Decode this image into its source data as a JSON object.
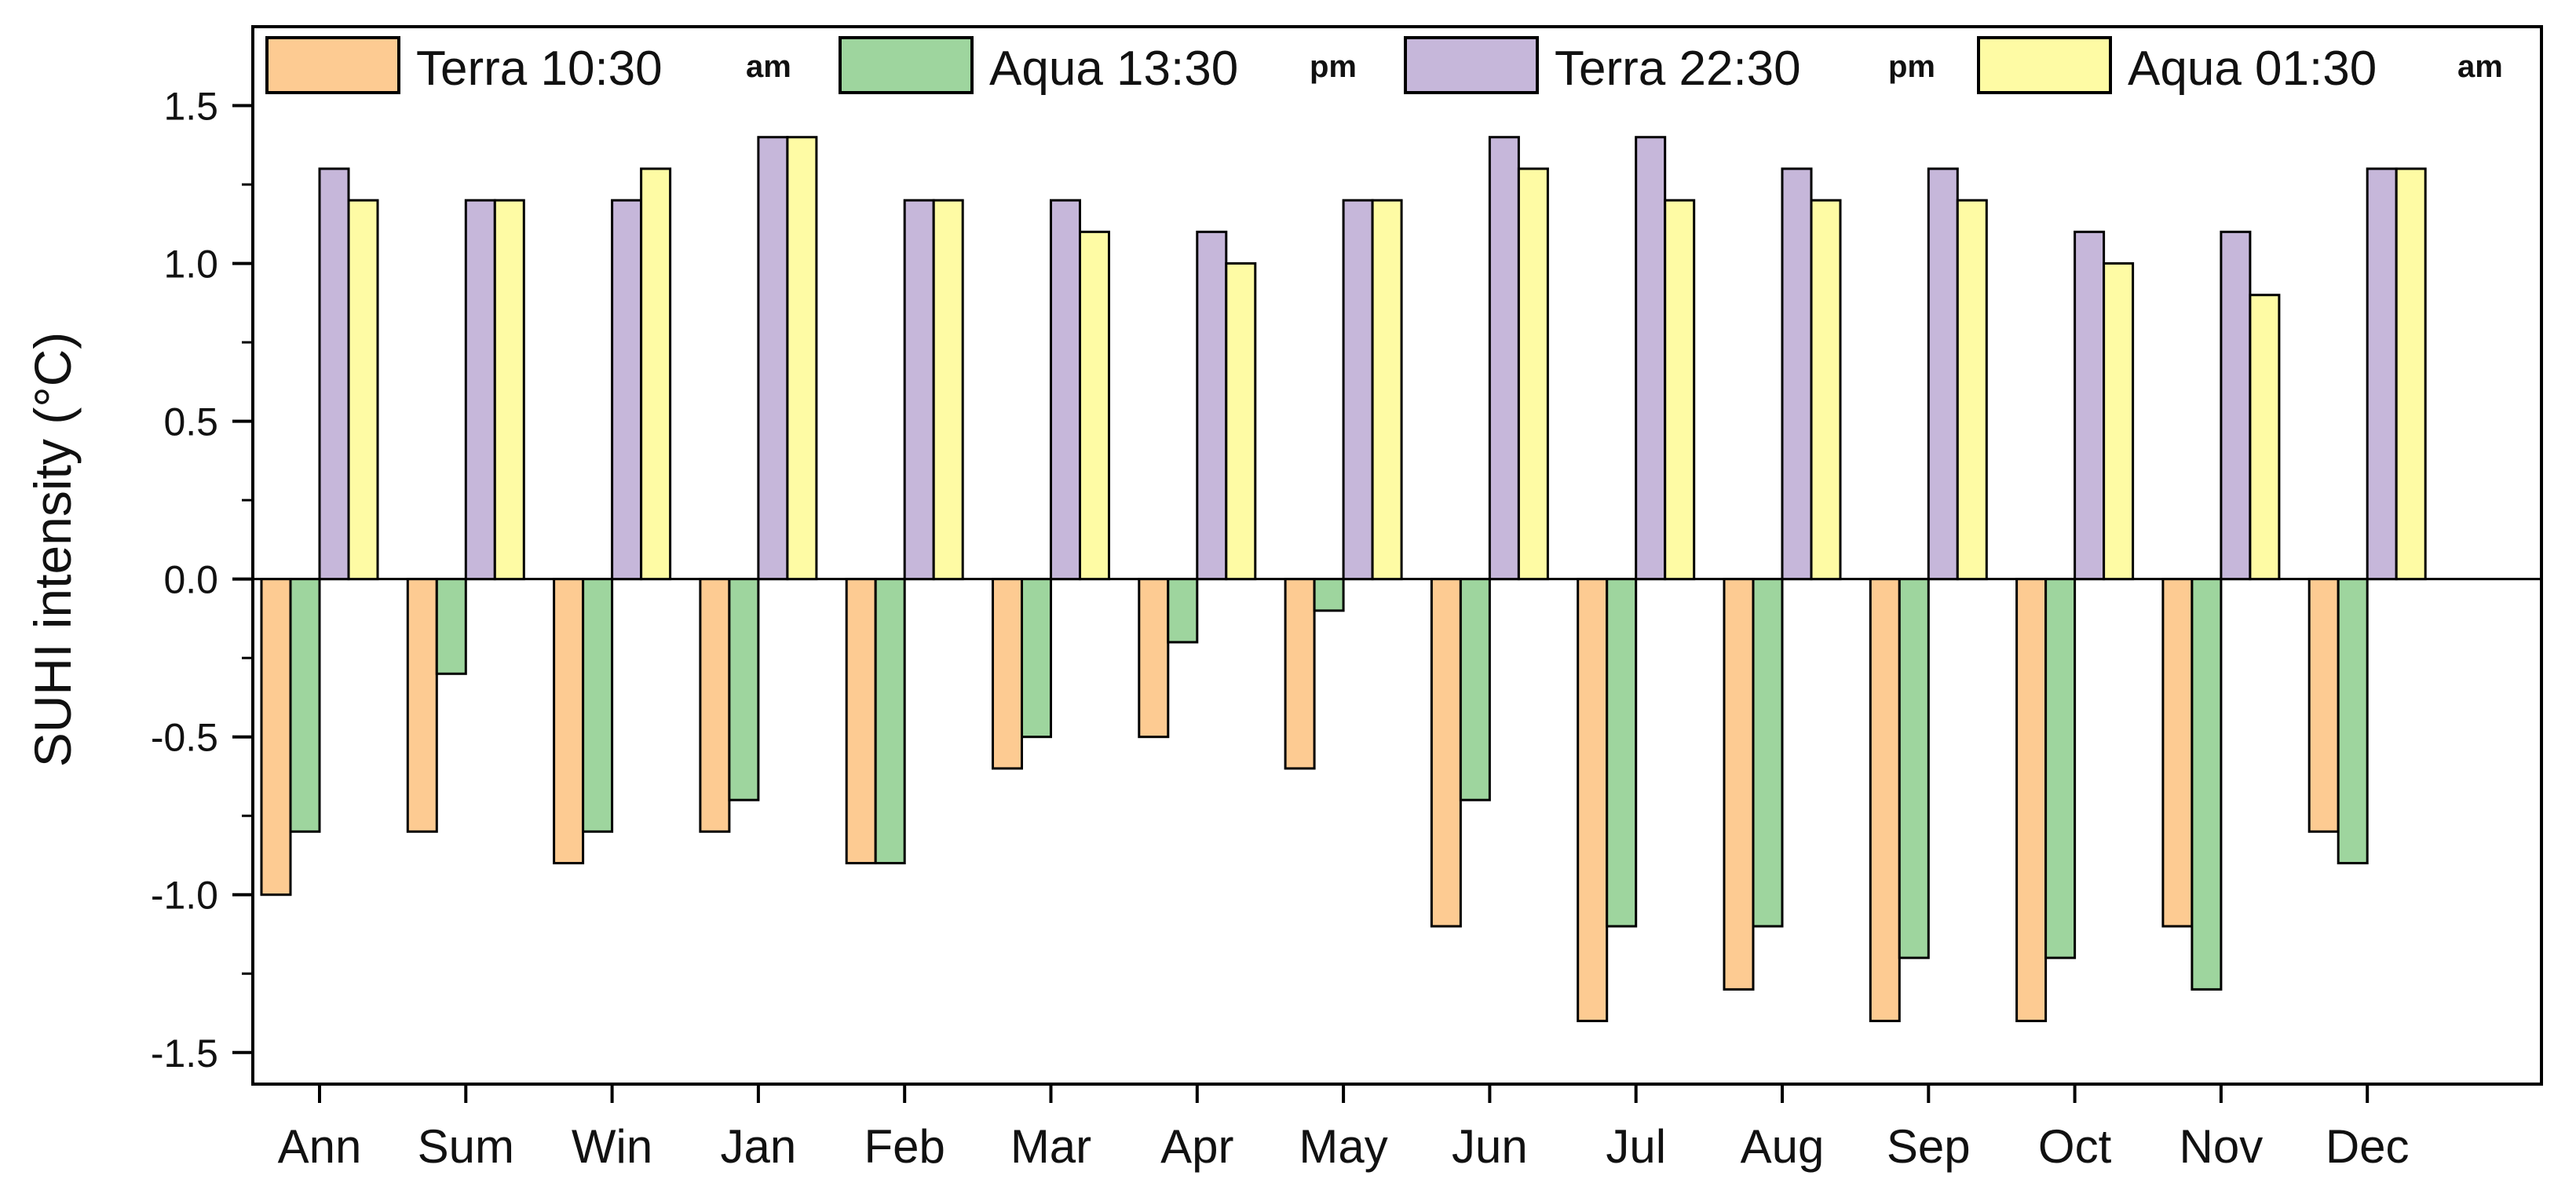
{
  "chart_data": {
    "type": "bar",
    "title": "",
    "xlabel": "",
    "ylabel": "SUHI intensity (°C)",
    "ylim": [
      -1.6,
      1.75
    ],
    "yticks": [
      "-1.5",
      "-1.0",
      "-0.5",
      "0.0",
      "0.5",
      "1.0",
      "1.5"
    ],
    "grid": false,
    "legend_position": "top",
    "categories": [
      "Ann",
      "Sum",
      "Win",
      "Jan",
      "Feb",
      "Mar",
      "Apr",
      "May",
      "Jun",
      "Jul",
      "Aug",
      "Sep",
      "Oct",
      "Nov",
      "Dec"
    ],
    "series": [
      {
        "name": "Terra 10:30",
        "suffix": "am",
        "color": "#FDCB92",
        "values": [
          -1.0,
          -0.8,
          -0.9,
          -0.8,
          -0.9,
          -0.6,
          -0.5,
          -0.6,
          -1.1,
          -1.4,
          -1.3,
          -1.4,
          -1.4,
          -1.1,
          -0.8
        ]
      },
      {
        "name": "Aqua 13:30",
        "suffix": "pm",
        "color": "#9ED59E",
        "values": [
          -0.8,
          -0.3,
          -0.8,
          -0.7,
          -0.9,
          -0.5,
          -0.2,
          -0.1,
          -0.7,
          -1.1,
          -1.1,
          -1.2,
          -1.2,
          -1.3,
          -0.9
        ]
      },
      {
        "name": "Terra 22:30",
        "suffix": "pm",
        "color": "#C6B7DA",
        "values": [
          1.3,
          1.2,
          1.2,
          1.4,
          1.2,
          1.2,
          1.1,
          1.2,
          1.4,
          1.4,
          1.3,
          1.3,
          1.1,
          1.1,
          1.3
        ]
      },
      {
        "name": "Aqua 01:30",
        "suffix": "am",
        "color": "#FEFBA4",
        "values": [
          1.2,
          1.2,
          1.3,
          1.4,
          1.2,
          1.1,
          1.0,
          1.2,
          1.3,
          1.2,
          1.2,
          1.2,
          1.0,
          0.9,
          1.3
        ]
      }
    ]
  }
}
